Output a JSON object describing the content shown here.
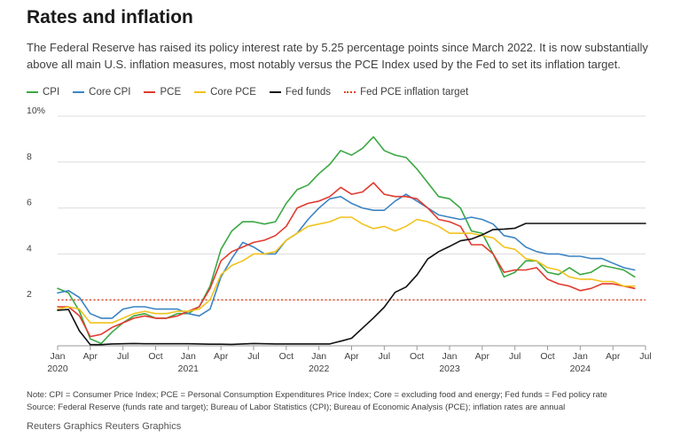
{
  "title": "Rates and inflation",
  "subtitle": "The Federal Reserve has raised its policy interest rate by 5.25 percentage points since March 2022. It is now substantially above all main U.S. inflation measures, most notably versus the PCE Index used by the Fed to set its inflation target.",
  "footnotes": {
    "note": "Note: CPI = Consumer Price Index; PCE = Personal Consumption Expenditures Price Index; Core = excluding food and energy; Fed funds = Fed policy rate",
    "source": "Source: Federal Reserve (funds rate and target); Bureau of Labor Statistics (CPI); Bureau of Economic Analysis (PCE); inflation rates are annual"
  },
  "credit": "Reuters Graphics Reuters Graphics",
  "chart_data": {
    "type": "line",
    "y_range": [
      0,
      10
    ],
    "y_ticks": [
      {
        "value": 2,
        "label": "2"
      },
      {
        "value": 4,
        "label": "4"
      },
      {
        "value": 6,
        "label": "6"
      },
      {
        "value": 8,
        "label": "8"
      },
      {
        "value": 10,
        "label": "10%"
      }
    ],
    "x_range": [
      "2020-01",
      "2024-07"
    ],
    "x_ticks": [
      {
        "x": "2020-01",
        "label": "Jan",
        "year": "2020"
      },
      {
        "x": "2020-04",
        "label": "Apr",
        "year": ""
      },
      {
        "x": "2020-07",
        "label": "Jul",
        "year": ""
      },
      {
        "x": "2020-10",
        "label": "Oct",
        "year": ""
      },
      {
        "x": "2021-01",
        "label": "Jan",
        "year": "2021"
      },
      {
        "x": "2021-04",
        "label": "Apr",
        "year": ""
      },
      {
        "x": "2021-07",
        "label": "Jul",
        "year": ""
      },
      {
        "x": "2021-10",
        "label": "Oct",
        "year": ""
      },
      {
        "x": "2022-01",
        "label": "Jan",
        "year": "2022"
      },
      {
        "x": "2022-04",
        "label": "Apr",
        "year": ""
      },
      {
        "x": "2022-07",
        "label": "Jul",
        "year": ""
      },
      {
        "x": "2022-10",
        "label": "Oct",
        "year": ""
      },
      {
        "x": "2023-01",
        "label": "Jan",
        "year": "2023"
      },
      {
        "x": "2023-04",
        "label": "Apr",
        "year": ""
      },
      {
        "x": "2023-07",
        "label": "Jul",
        "year": ""
      },
      {
        "x": "2023-10",
        "label": "Oct",
        "year": ""
      },
      {
        "x": "2024-01",
        "label": "Jan",
        "year": "2024"
      },
      {
        "x": "2024-04",
        "label": "Apr",
        "year": ""
      },
      {
        "x": "2024-07",
        "label": "Jul",
        "year": ""
      }
    ],
    "grid": true,
    "legend_position": "top-left",
    "series": [
      {
        "name": "CPI",
        "color": "#3aa843",
        "x": [
          "2020-01",
          "2020-02",
          "2020-03",
          "2020-04",
          "2020-05",
          "2020-06",
          "2020-07",
          "2020-08",
          "2020-09",
          "2020-10",
          "2020-11",
          "2020-12",
          "2021-01",
          "2021-02",
          "2021-03",
          "2021-04",
          "2021-05",
          "2021-06",
          "2021-07",
          "2021-08",
          "2021-09",
          "2021-10",
          "2021-11",
          "2021-12",
          "2022-01",
          "2022-02",
          "2022-03",
          "2022-04",
          "2022-05",
          "2022-06",
          "2022-07",
          "2022-08",
          "2022-09",
          "2022-10",
          "2022-11",
          "2022-12",
          "2023-01",
          "2023-02",
          "2023-03",
          "2023-04",
          "2023-05",
          "2023-06",
          "2023-07",
          "2023-08",
          "2023-09",
          "2023-10",
          "2023-11",
          "2023-12",
          "2024-01",
          "2024-02",
          "2024-03",
          "2024-04",
          "2024-05",
          "2024-06"
        ],
        "values": [
          2.5,
          2.3,
          1.5,
          0.3,
          0.1,
          0.6,
          1.0,
          1.3,
          1.4,
          1.2,
          1.2,
          1.4,
          1.4,
          1.7,
          2.6,
          4.2,
          5.0,
          5.4,
          5.4,
          5.3,
          5.4,
          6.2,
          6.8,
          7.0,
          7.5,
          7.9,
          8.5,
          8.3,
          8.6,
          9.1,
          8.5,
          8.3,
          8.2,
          7.7,
          7.1,
          6.5,
          6.4,
          6.0,
          5.0,
          4.9,
          4.0,
          3.0,
          3.2,
          3.7,
          3.7,
          3.2,
          3.1,
          3.4,
          3.1,
          3.2,
          3.5,
          3.4,
          3.3,
          3.0
        ]
      },
      {
        "name": "Core CPI",
        "color": "#3b84c4",
        "x": [
          "2020-01",
          "2020-02",
          "2020-03",
          "2020-04",
          "2020-05",
          "2020-06",
          "2020-07",
          "2020-08",
          "2020-09",
          "2020-10",
          "2020-11",
          "2020-12",
          "2021-01",
          "2021-02",
          "2021-03",
          "2021-04",
          "2021-05",
          "2021-06",
          "2021-07",
          "2021-08",
          "2021-09",
          "2021-10",
          "2021-11",
          "2021-12",
          "2022-01",
          "2022-02",
          "2022-03",
          "2022-04",
          "2022-05",
          "2022-06",
          "2022-07",
          "2022-08",
          "2022-09",
          "2022-10",
          "2022-11",
          "2022-12",
          "2023-01",
          "2023-02",
          "2023-03",
          "2023-04",
          "2023-05",
          "2023-06",
          "2023-07",
          "2023-08",
          "2023-09",
          "2023-10",
          "2023-11",
          "2023-12",
          "2024-01",
          "2024-02",
          "2024-03",
          "2024-04",
          "2024-05",
          "2024-06"
        ],
        "values": [
          2.3,
          2.4,
          2.1,
          1.4,
          1.2,
          1.2,
          1.6,
          1.7,
          1.7,
          1.6,
          1.6,
          1.6,
          1.4,
          1.3,
          1.6,
          3.0,
          3.8,
          4.5,
          4.3,
          4.0,
          4.0,
          4.6,
          4.9,
          5.5,
          6.0,
          6.4,
          6.5,
          6.2,
          6.0,
          5.9,
          5.9,
          6.3,
          6.6,
          6.3,
          6.0,
          5.7,
          5.6,
          5.5,
          5.6,
          5.5,
          5.3,
          4.8,
          4.7,
          4.3,
          4.1,
          4.0,
          4.0,
          3.9,
          3.9,
          3.8,
          3.8,
          3.6,
          3.4,
          3.3
        ]
      },
      {
        "name": "PCE",
        "color": "#e03a2f",
        "x": [
          "2020-01",
          "2020-02",
          "2020-03",
          "2020-04",
          "2020-05",
          "2020-06",
          "2020-07",
          "2020-08",
          "2020-09",
          "2020-10",
          "2020-11",
          "2020-12",
          "2021-01",
          "2021-02",
          "2021-03",
          "2021-04",
          "2021-05",
          "2021-06",
          "2021-07",
          "2021-08",
          "2021-09",
          "2021-10",
          "2021-11",
          "2021-12",
          "2022-01",
          "2022-02",
          "2022-03",
          "2022-04",
          "2022-05",
          "2022-06",
          "2022-07",
          "2022-08",
          "2022-09",
          "2022-10",
          "2022-11",
          "2022-12",
          "2023-01",
          "2023-02",
          "2023-03",
          "2023-04",
          "2023-05",
          "2023-06",
          "2023-07",
          "2023-08",
          "2023-09",
          "2023-10",
          "2023-11",
          "2023-12",
          "2024-01",
          "2024-02",
          "2024-03",
          "2024-04",
          "2024-05",
          "2024-06"
        ],
        "values": [
          1.7,
          1.7,
          1.3,
          0.4,
          0.5,
          0.8,
          1.0,
          1.2,
          1.3,
          1.2,
          1.2,
          1.3,
          1.5,
          1.7,
          2.5,
          3.7,
          4.1,
          4.3,
          4.5,
          4.6,
          4.8,
          5.2,
          6.0,
          6.2,
          6.3,
          6.5,
          6.9,
          6.6,
          6.7,
          7.1,
          6.6,
          6.5,
          6.5,
          6.4,
          6.0,
          5.5,
          5.4,
          5.2,
          4.4,
          4.4,
          4.0,
          3.2,
          3.3,
          3.3,
          3.4,
          2.9,
          2.7,
          2.6,
          2.4,
          2.5,
          2.7,
          2.7,
          2.6,
          2.5
        ]
      },
      {
        "name": "Core PCE",
        "color": "#f2c21d",
        "x": [
          "2020-01",
          "2020-02",
          "2020-03",
          "2020-04",
          "2020-05",
          "2020-06",
          "2020-07",
          "2020-08",
          "2020-09",
          "2020-10",
          "2020-11",
          "2020-12",
          "2021-01",
          "2021-02",
          "2021-03",
          "2021-04",
          "2021-05",
          "2021-06",
          "2021-07",
          "2021-08",
          "2021-09",
          "2021-10",
          "2021-11",
          "2021-12",
          "2022-01",
          "2022-02",
          "2022-03",
          "2022-04",
          "2022-05",
          "2022-06",
          "2022-07",
          "2022-08",
          "2022-09",
          "2022-10",
          "2022-11",
          "2022-12",
          "2023-01",
          "2023-02",
          "2023-03",
          "2023-04",
          "2023-05",
          "2023-06",
          "2023-07",
          "2023-08",
          "2023-09",
          "2023-10",
          "2023-11",
          "2023-12",
          "2024-01",
          "2024-02",
          "2024-03",
          "2024-04",
          "2024-05",
          "2024-06"
        ],
        "values": [
          1.6,
          1.7,
          1.6,
          1.0,
          1.0,
          1.0,
          1.2,
          1.4,
          1.5,
          1.4,
          1.4,
          1.5,
          1.5,
          1.6,
          2.0,
          3.1,
          3.5,
          3.7,
          4.0,
          4.0,
          4.1,
          4.6,
          4.9,
          5.2,
          5.3,
          5.4,
          5.6,
          5.6,
          5.3,
          5.1,
          5.2,
          5.0,
          5.2,
          5.5,
          5.4,
          5.2,
          4.9,
          4.9,
          4.9,
          4.8,
          4.7,
          4.3,
          4.2,
          3.8,
          3.7,
          3.4,
          3.3,
          3.0,
          2.9,
          2.9,
          2.8,
          2.8,
          2.6,
          2.6
        ]
      },
      {
        "name": "Fed funds",
        "color": "#111111",
        "x": [
          "2020-01",
          "2020-02",
          "2020-03",
          "2020-04",
          "2020-05",
          "2020-06",
          "2020-07",
          "2020-08",
          "2020-09",
          "2020-10",
          "2020-11",
          "2020-12",
          "2021-01",
          "2021-02",
          "2021-03",
          "2021-04",
          "2021-05",
          "2021-06",
          "2021-07",
          "2021-08",
          "2021-09",
          "2021-10",
          "2021-11",
          "2021-12",
          "2022-01",
          "2022-02",
          "2022-03",
          "2022-04",
          "2022-05",
          "2022-06",
          "2022-07",
          "2022-08",
          "2022-09",
          "2022-10",
          "2022-11",
          "2022-12",
          "2023-01",
          "2023-02",
          "2023-03",
          "2023-04",
          "2023-05",
          "2023-06",
          "2023-07",
          "2023-08",
          "2023-09",
          "2023-10",
          "2023-11",
          "2023-12",
          "2024-01",
          "2024-02",
          "2024-03",
          "2024-04",
          "2024-05",
          "2024-06",
          "2024-07"
        ],
        "values": [
          1.55,
          1.58,
          0.65,
          0.05,
          0.05,
          0.08,
          0.09,
          0.1,
          0.09,
          0.09,
          0.09,
          0.09,
          0.09,
          0.08,
          0.07,
          0.07,
          0.06,
          0.08,
          0.1,
          0.09,
          0.08,
          0.08,
          0.08,
          0.08,
          0.08,
          0.08,
          0.2,
          0.33,
          0.77,
          1.21,
          1.68,
          2.33,
          2.56,
          3.08,
          3.78,
          4.1,
          4.33,
          4.57,
          4.65,
          4.83,
          5.06,
          5.08,
          5.12,
          5.33,
          5.33,
          5.33,
          5.33,
          5.33,
          5.33,
          5.33,
          5.33,
          5.33,
          5.33,
          5.33,
          5.33
        ]
      },
      {
        "name": "Fed PCE inflation target",
        "color": "#e0451f",
        "style": "dotted",
        "x": [
          "2020-01",
          "2024-07"
        ],
        "values": [
          2,
          2
        ]
      }
    ]
  }
}
